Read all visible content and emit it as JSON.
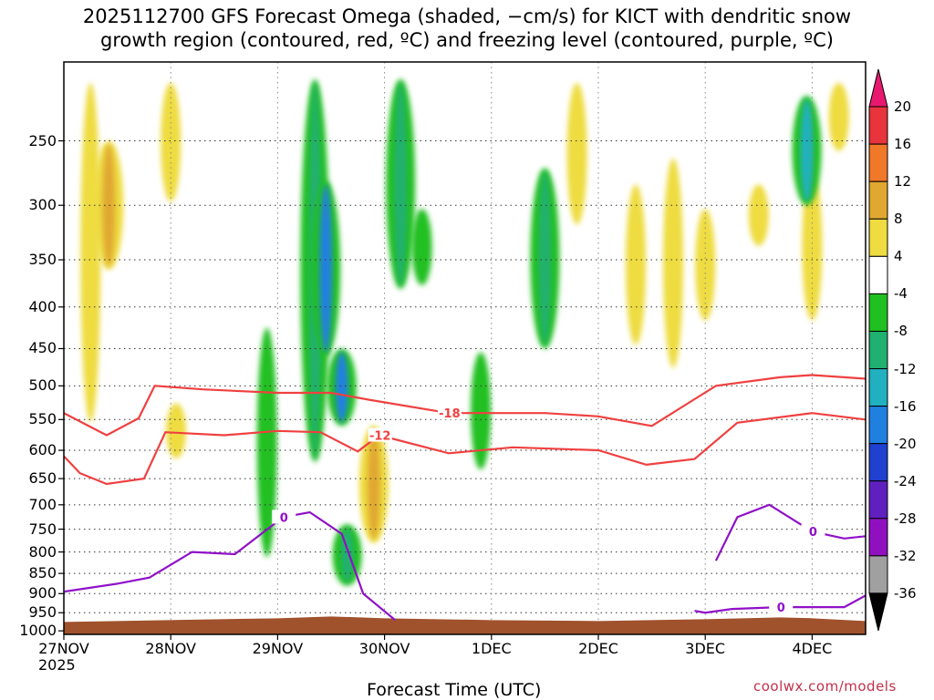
{
  "chart_data": {
    "type": "heatmap",
    "title_line1": "2025112700 GFS Forecast Omega (shaded, −cm/s) for KICT with dendritic snow",
    "title_line2": "growth region (contoured, red, ºC) and freezing level (contoured, purple, ºC)",
    "xlabel": "Forecast Time (UTC)",
    "ylabel": "",
    "x_ticks": [
      "27NOV",
      "28NOV",
      "29NOV",
      "30NOV",
      "1DEC",
      "2DEC",
      "3DEC",
      "4DEC"
    ],
    "x_tick_year": "2025",
    "x_range_days": [
      0,
      7.5
    ],
    "y_axis": "pressure_hPa",
    "y_ticks": [
      "250",
      "300",
      "350",
      "400",
      "450",
      "500",
      "550",
      "600",
      "650",
      "700",
      "750",
      "800",
      "850",
      "900",
      "950",
      "1000"
    ],
    "y_tick_values": [
      250,
      300,
      350,
      400,
      450,
      500,
      550,
      600,
      650,
      700,
      750,
      800,
      850,
      900,
      950,
      1000
    ],
    "y_range": [
      200,
      1010
    ],
    "grid": true,
    "colorbar": {
      "labels": [
        "20",
        "16",
        "12",
        "8",
        "4",
        "-4",
        "-8",
        "-12",
        "-16",
        "-20",
        "-24",
        "-28",
        "-32",
        "-36"
      ],
      "colors": [
        "#e8186e",
        "#e8343c",
        "#f07828",
        "#e0a830",
        "#eedc40",
        "#ffffff",
        "#20c020",
        "#20b070",
        "#20b0c0",
        "#2080e0",
        "#2040d0",
        "#6020c0",
        "#9010c0",
        "#a0a0a0",
        "#000000"
      ]
    },
    "omega_features": [
      {
        "t": 0.25,
        "p1": 210,
        "p2": 560,
        "val": 6
      },
      {
        "t": 0.42,
        "p1": 250,
        "p2": 360,
        "val": 8
      },
      {
        "t": 1.0,
        "p1": 210,
        "p2": 300,
        "val": 6
      },
      {
        "t": 1.05,
        "p1": 520,
        "p2": 620,
        "val": 4
      },
      {
        "t": 1.9,
        "p1": 420,
        "p2": 820,
        "val": -6
      },
      {
        "t": 2.35,
        "p1": 210,
        "p2": 620,
        "val": -8
      },
      {
        "t": 2.45,
        "p1": 280,
        "p2": 460,
        "val": -18
      },
      {
        "t": 2.6,
        "p1": 450,
        "p2": 560,
        "val": -18
      },
      {
        "t": 2.65,
        "p1": 740,
        "p2": 880,
        "val": -10
      },
      {
        "t": 2.9,
        "p1": 560,
        "p2": 780,
        "val": 8
      },
      {
        "t": 3.15,
        "p1": 210,
        "p2": 380,
        "val": -8
      },
      {
        "t": 3.35,
        "p1": 300,
        "p2": 380,
        "val": -6
      },
      {
        "t": 3.9,
        "p1": 450,
        "p2": 640,
        "val": -7
      },
      {
        "t": 4.5,
        "p1": 270,
        "p2": 450,
        "val": -10
      },
      {
        "t": 4.8,
        "p1": 210,
        "p2": 320,
        "val": 5
      },
      {
        "t": 5.35,
        "p1": 280,
        "p2": 450,
        "val": 5
      },
      {
        "t": 5.7,
        "p1": 260,
        "p2": 480,
        "val": 6
      },
      {
        "t": 6.0,
        "p1": 300,
        "p2": 420,
        "val": 5
      },
      {
        "t": 6.5,
        "p1": 280,
        "p2": 340,
        "val": 4
      },
      {
        "t": 7.0,
        "p1": 270,
        "p2": 420,
        "val": 7
      },
      {
        "t": 6.95,
        "p1": 220,
        "p2": 300,
        "val": -12
      },
      {
        "t": 7.25,
        "p1": 210,
        "p2": 260,
        "val": 6
      }
    ],
    "red_contours": [
      {
        "label": "-18",
        "t": [
          0.0,
          0.4,
          0.7,
          0.85,
          1.3,
          2.0,
          2.5,
          2.85,
          3.6,
          4.5,
          5.0,
          5.5,
          6.1,
          6.7,
          7.0,
          7.5
        ],
        "p": [
          540,
          575,
          548,
          500,
          505,
          510,
          510,
          520,
          540,
          540,
          545,
          560,
          500,
          488,
          485,
          490
        ]
      },
      {
        "label": "-12",
        "t": [
          0.0,
          0.15,
          0.4,
          0.75,
          0.95,
          1.5,
          2.0,
          2.4,
          2.75,
          2.95,
          3.6,
          4.2,
          5.0,
          5.45,
          5.9,
          6.3,
          7.0,
          7.5
        ],
        "p": [
          610,
          640,
          660,
          650,
          570,
          575,
          568,
          570,
          602,
          575,
          605,
          595,
          600,
          625,
          615,
          555,
          540,
          550
        ]
      }
    ],
    "purple_contours": [
      {
        "label": "0",
        "t": [
          0.0,
          0.5,
          0.8,
          1.2,
          1.6,
          2.05,
          2.3,
          2.6,
          2.8,
          3.1
        ],
        "p": [
          895,
          875,
          860,
          800,
          805,
          725,
          715,
          760,
          900,
          970
        ]
      },
      {
        "label": "0",
        "t": [
          5.9,
          6.0,
          6.25,
          6.7,
          7.0,
          7.3,
          7.5
        ],
        "p": [
          945,
          950,
          940,
          935,
          935,
          935,
          905
        ]
      },
      {
        "label": "0",
        "t": [
          6.1,
          6.3,
          6.6,
          7.0,
          7.3,
          7.5
        ],
        "p": [
          820,
          725,
          700,
          755,
          770,
          765
        ]
      }
    ],
    "terrain_pressure_hPa": 975,
    "credit": "coolwx.com/models"
  }
}
